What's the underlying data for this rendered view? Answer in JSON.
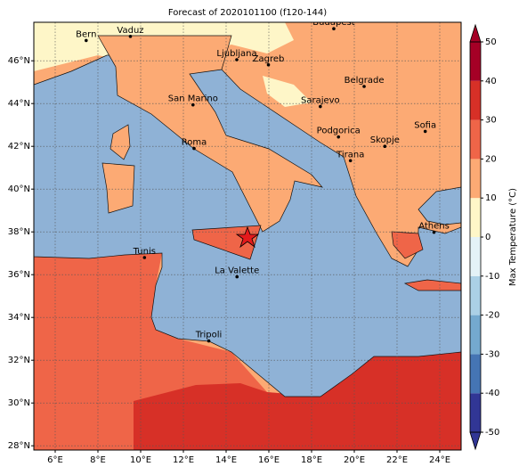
{
  "chart_data": {
    "type": "map",
    "title": "Forecast of 2020101100 (f120-144)",
    "xlim": [
      5,
      25
    ],
    "ylim": [
      27.8,
      47.8
    ],
    "xticks": [
      {
        "value": 6,
        "label": "6°E"
      },
      {
        "value": 8,
        "label": "8°E"
      },
      {
        "value": 10,
        "label": "10°E"
      },
      {
        "value": 12,
        "label": "12°E"
      },
      {
        "value": 14,
        "label": "14°E"
      },
      {
        "value": 16,
        "label": "16°E"
      },
      {
        "value": 18,
        "label": "18°E"
      },
      {
        "value": 20,
        "label": "20°E"
      },
      {
        "value": 22,
        "label": "22°E"
      },
      {
        "value": 24,
        "label": "24°E"
      }
    ],
    "yticks": [
      {
        "value": 28,
        "label": "28°N"
      },
      {
        "value": 30,
        "label": "30°N"
      },
      {
        "value": 32,
        "label": "32°N"
      },
      {
        "value": 34,
        "label": "34°N"
      },
      {
        "value": 36,
        "label": "36°N"
      },
      {
        "value": 38,
        "label": "38°N"
      },
      {
        "value": 40,
        "label": "40°N"
      },
      {
        "value": 42,
        "label": "42°N"
      },
      {
        "value": 44,
        "label": "44°N"
      },
      {
        "value": 46,
        "label": "46°N"
      }
    ],
    "grid": true,
    "cities": [
      "Bern",
      "Vaduz",
      "Budapest",
      "Ljubljana",
      "Zagreb",
      "Belgrade",
      "San Marino",
      "Sarajevo",
      "Roma",
      "Podgorica",
      "Sofia",
      "Skopje",
      "Tirana",
      "Athens",
      "Tunis",
      "La Valette",
      "Tripoli"
    ],
    "colorbar": {
      "label": "Max Temperature (°C)",
      "lim": [
        -50,
        50
      ],
      "ticks": [
        -50,
        -40,
        -30,
        -20,
        -10,
        0,
        10,
        20,
        30,
        40,
        50
      ],
      "colors": [
        "#313695",
        "#4575b4",
        "#74a9cf",
        "#abd0e6",
        "#e4f2f7",
        "#fef6c8",
        "#fcaa74",
        "#ef6548",
        "#d73027",
        "#a50026"
      ]
    }
  }
}
